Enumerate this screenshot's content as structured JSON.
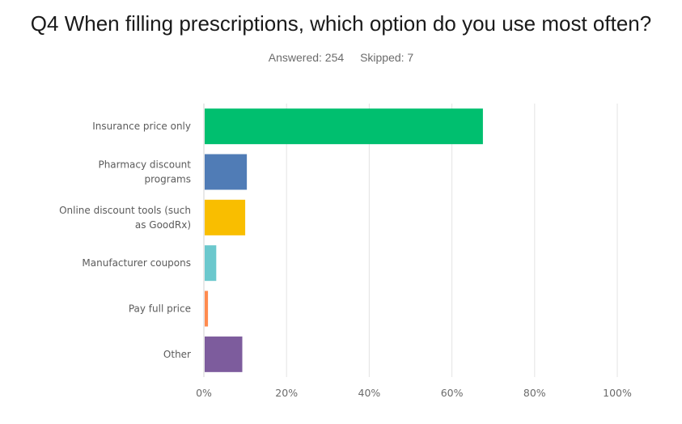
{
  "question_title": "Q4 When filling prescriptions, which option do you use most often?",
  "answered_text": "Answered: 254",
  "skipped_text": "Skipped: 7",
  "chart_data": {
    "type": "bar",
    "orientation": "horizontal",
    "categories": [
      "Insurance price only",
      "Pharmacy discount programs",
      "Online discount tools (such as GoodRx)",
      "Manufacturer coupons",
      "Pay full price",
      "Other"
    ],
    "category_lines": [
      [
        "Insurance price only"
      ],
      [
        "Pharmacy discount",
        "programs"
      ],
      [
        "Online discount tools (such",
        "as GoodRx)"
      ],
      [
        "Manufacturer coupons"
      ],
      [
        "Pay full price"
      ],
      [
        "Other"
      ]
    ],
    "values": [
      67.3,
      10.2,
      9.8,
      2.8,
      0.8,
      9.1
    ],
    "colors": [
      "#00bf6f",
      "#507cb6",
      "#f9be00",
      "#6bc8cd",
      "#ff8b4f",
      "#7d5c9d"
    ],
    "xlim": [
      0,
      100
    ],
    "xticks": [
      0,
      20,
      40,
      60,
      80,
      100
    ],
    "xtick_labels": [
      "0%",
      "20%",
      "40%",
      "60%",
      "80%",
      "100%"
    ],
    "grid": true,
    "legend": "none"
  }
}
